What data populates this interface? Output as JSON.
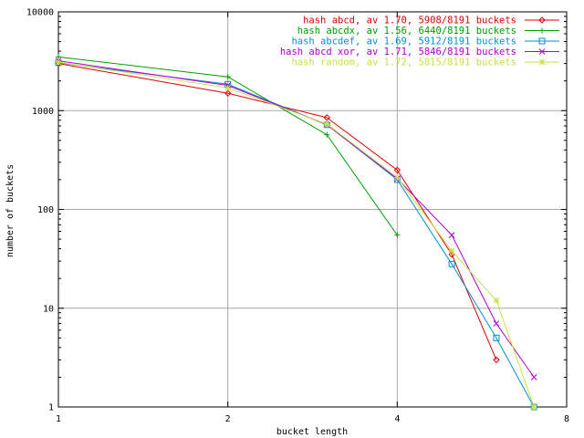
{
  "chart_data": {
    "type": "line",
    "title": "",
    "xlabel": "bucket length",
    "ylabel": "number of buckets",
    "xscale": "log2",
    "yscale": "log10",
    "xlim": [
      1,
      8
    ],
    "ylim": [
      1,
      10000
    ],
    "grid": true,
    "legend_position": "top-right",
    "x_ticks": [
      {
        "value": 1,
        "label": "1"
      },
      {
        "value": 2,
        "label": "2"
      },
      {
        "value": 4,
        "label": "4"
      },
      {
        "value": 8,
        "label": "8"
      }
    ],
    "y_ticks": [
      {
        "value": 1,
        "label": "1"
      },
      {
        "value": 10,
        "label": "10"
      },
      {
        "value": 100,
        "label": "100"
      },
      {
        "value": 1000,
        "label": "1000"
      },
      {
        "value": 10000,
        "label": "10000"
      }
    ],
    "series": [
      {
        "name": "hash abcd, av 1.70, 5908/8191 buckets",
        "color": "#e00000",
        "marker": "diamond",
        "x": [
          1,
          2,
          3,
          4,
          5,
          6
        ],
        "y": [
          3000,
          1500,
          850,
          250,
          35,
          3
        ]
      },
      {
        "name": "hash abcdx, av 1.56, 6440/8191 buckets",
        "color": "#00a000",
        "marker": "plus",
        "x": [
          1,
          2,
          3,
          4
        ],
        "y": [
          3500,
          2200,
          570,
          55
        ]
      },
      {
        "name": "hash abcdef, av 1.69, 5912/8191 buckets",
        "color": "#0090d0",
        "marker": "square",
        "x": [
          1,
          2,
          3,
          4,
          5,
          6,
          7
        ],
        "y": [
          3050,
          1850,
          720,
          200,
          28,
          5,
          1
        ]
      },
      {
        "name": "hash abcd xor, av 1.71, 5846/8191 buckets",
        "color": "#b000d0",
        "marker": "cross",
        "x": [
          1,
          2,
          3,
          4,
          5,
          6,
          7
        ],
        "y": [
          3200,
          1800,
          720,
          205,
          55,
          7,
          2
        ]
      },
      {
        "name": "hash random, av 1.72, 5815/8191 buckets",
        "color": "#c8e040",
        "marker": "star",
        "x": [
          1,
          2,
          3,
          4,
          5,
          6,
          7
        ],
        "y": [
          3100,
          1700,
          730,
          210,
          38,
          12,
          1
        ]
      }
    ]
  }
}
